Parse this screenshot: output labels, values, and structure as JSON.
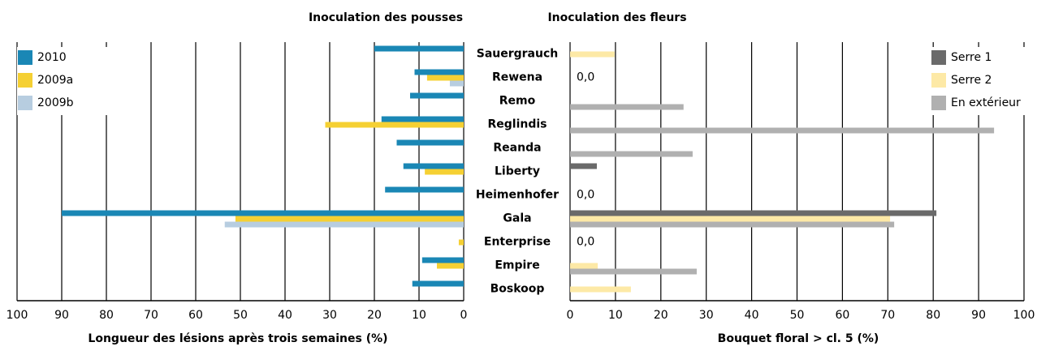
{
  "chart_data": [
    {
      "type": "barh",
      "title": "Inoculation des pousses",
      "xlabel": "Longueur des lésions après trois semaines (%)",
      "categories": [
        "Sauergrauch",
        "Rewena",
        "Remo",
        "Reglindis",
        "Reanda",
        "Liberty",
        "Heimenhofer",
        "Gala",
        "Enterprise",
        "Empire",
        "Boskoop"
      ],
      "series": [
        {
          "name": "2010",
          "color": "#1a87b5",
          "values": [
            20,
            11,
            12,
            18.4,
            15,
            13.5,
            17.6,
            90,
            null,
            9.3,
            11.5
          ]
        },
        {
          "name": "2009a",
          "color": "#f5d033",
          "values": [
            null,
            8.2,
            null,
            31,
            null,
            8.7,
            null,
            51.1,
            1.1,
            6,
            null
          ]
        },
        {
          "name": "2009b",
          "color": "#b7cde0",
          "values": [
            null,
            3.1,
            null,
            null,
            null,
            null,
            null,
            53.5,
            null,
            null,
            null
          ]
        }
      ],
      "xlim": [
        100,
        0
      ],
      "xticks": [
        100,
        90,
        80,
        70,
        60,
        50,
        40,
        30,
        20,
        10,
        0
      ],
      "grid": true,
      "legend": "upper left"
    },
    {
      "type": "barh",
      "title": "Inoculation des fleurs",
      "xlabel": "Bouquet floral > cl. 5 (%)",
      "series": [
        {
          "name": "Serre 1",
          "color": "#6a6a6a",
          "values": [
            null,
            0,
            null,
            null,
            null,
            5.9,
            0,
            80.7,
            0,
            null,
            null
          ],
          "value_labels": [
            null,
            "0,0",
            null,
            null,
            null,
            null,
            "0,0",
            null,
            "0,0",
            null,
            null
          ]
        },
        {
          "name": "Serre 2",
          "color": "#fde9a6",
          "values": [
            9.8,
            null,
            null,
            null,
            null,
            null,
            null,
            70.5,
            null,
            6.1,
            13.4
          ]
        },
        {
          "name": "En extérieur",
          "color": "#b0b0b0",
          "values": [
            null,
            null,
            25,
            93.4,
            27,
            null,
            null,
            71.4,
            null,
            27.9,
            null
          ]
        }
      ],
      "xlim": [
        0,
        100
      ],
      "xticks": [
        0,
        10,
        20,
        30,
        40,
        50,
        60,
        70,
        80,
        90,
        100
      ],
      "grid": true,
      "legend": "upper right"
    }
  ]
}
